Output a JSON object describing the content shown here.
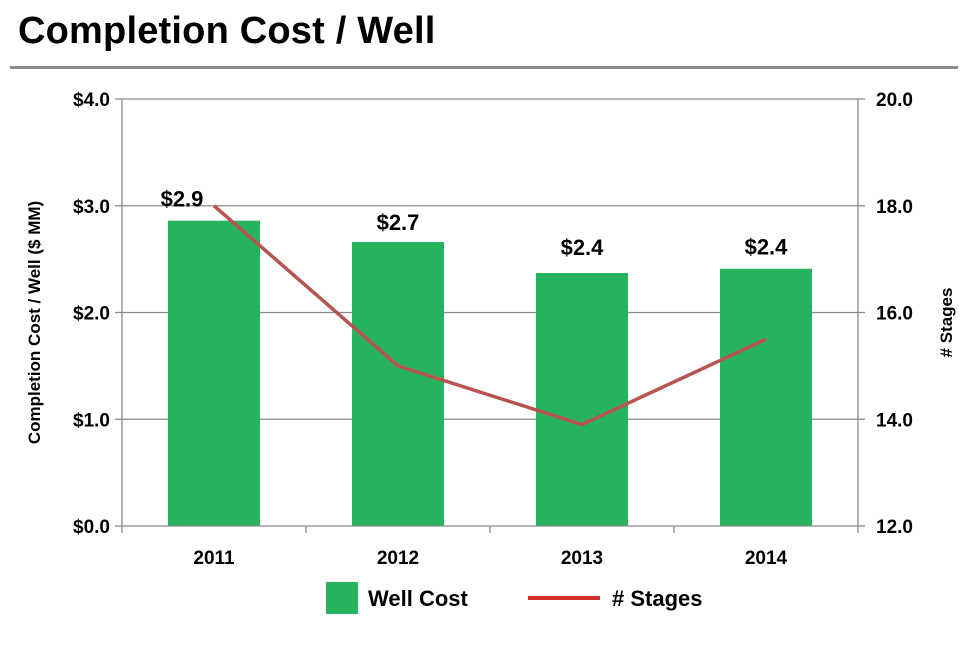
{
  "page": {
    "title": "Completion Cost / Well"
  },
  "chart_data": {
    "type": "bar",
    "title": "Completion Cost / Well",
    "categories": [
      "2011",
      "2012",
      "2013",
      "2014"
    ],
    "series": [
      {
        "name": "Well Cost",
        "type": "bar",
        "axis": "left",
        "values": [
          2.86,
          2.66,
          2.37,
          2.41
        ],
        "labels": [
          "$2.9",
          "$2.7",
          "$2.4",
          "$2.4"
        ],
        "color": "#27B35E"
      },
      {
        "name": "# Stages",
        "type": "line",
        "axis": "right",
        "values": [
          18.0,
          15.0,
          13.9,
          15.5
        ],
        "color": "#B85450",
        "legend_color": "#D0312D"
      }
    ],
    "ylabel": "Completion Cost / Well ($ MM)",
    "ylim": [
      0,
      4
    ],
    "yticks": [
      0,
      1,
      2,
      3,
      4
    ],
    "ytick_labels": [
      "$0.0",
      "$1.0",
      "$2.0",
      "$3.0",
      "$4.0"
    ],
    "y2label": "# Stages",
    "y2lim": [
      12,
      20
    ],
    "y2ticks": [
      12,
      14,
      16,
      18,
      20
    ],
    "y2tick_labels": [
      "12.0",
      "14.0",
      "16.0",
      "18.0",
      "20.0"
    ],
    "grid": true,
    "legend": "bottom-center",
    "gridColor": "#8a8a8a"
  }
}
